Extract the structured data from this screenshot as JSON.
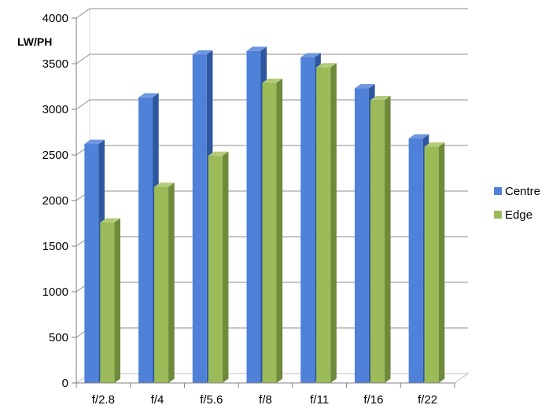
{
  "chart_data": {
    "type": "bar",
    "title": "",
    "xlabel": "",
    "ylabel": "LW/PH",
    "categories": [
      "f/2.8",
      "f/4",
      "f/5.6",
      "f/8",
      "f/11",
      "f/16",
      "f/22"
    ],
    "series": [
      {
        "name": "Centre",
        "values": [
          2620,
          3130,
          3600,
          3640,
          3570,
          3230,
          2680
        ],
        "color": "#4f81d8",
        "side_color": "#2e57a0",
        "top_color": "#6f97e0"
      },
      {
        "name": "Edge",
        "values": [
          1760,
          2150,
          2490,
          3290,
          3460,
          3100,
          2590
        ],
        "color": "#9bbb59",
        "side_color": "#6f8a3a",
        "top_color": "#b3cc7a"
      }
    ],
    "y_ticks": [
      "0",
      "500",
      "1000",
      "1500",
      "2000",
      "2500",
      "3000",
      "3500",
      "4000"
    ],
    "ylim": [
      0,
      4000
    ],
    "grid": true,
    "legend_position": "right",
    "chart_style": "3d-clustered-column"
  }
}
